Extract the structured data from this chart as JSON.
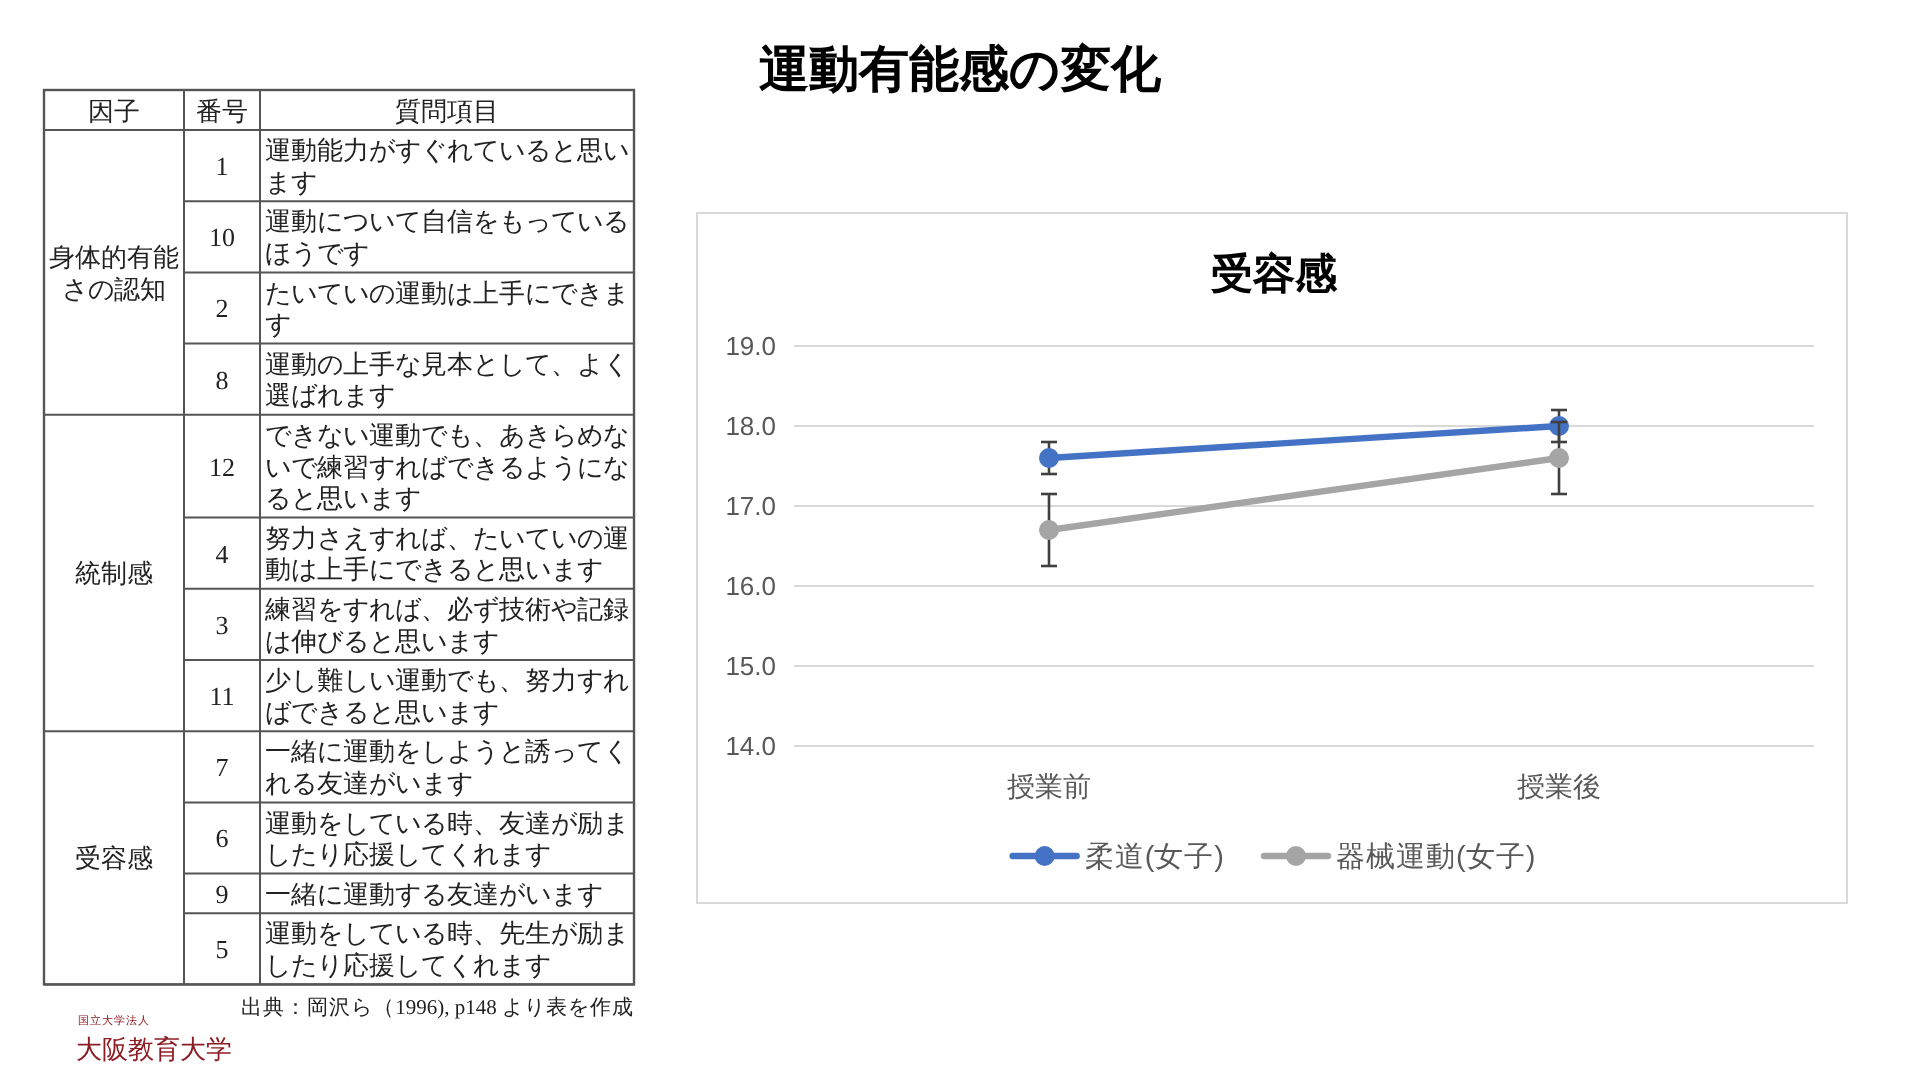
{
  "chart_data": [
    {
      "type": "other",
      "title": "運動有能感の変化",
      "categories": [
        "因子",
        "番号",
        "質問項目"
      ],
      "cell_labels": [
        [
          "身体的有能さの認知",
          "1",
          "運動能力がすぐれていると思います"
        ],
        [
          null,
          "10",
          "運動について自信をもっているほうです"
        ],
        [
          null,
          "2",
          "たいていの運動は上手にできます"
        ],
        [
          null,
          "8",
          "運動の上手な見本として、よく選ばれます"
        ],
        [
          "統制感",
          "12",
          "できない運動でも、あきらめないで練習すればできるようになると思います"
        ],
        [
          null,
          "4",
          "努力さえすれば、たいていの運動は上手にできると思います"
        ],
        [
          null,
          "3",
          "練習をすれば、必ず技術や記録は伸びると思います"
        ],
        [
          null,
          "11",
          "少し難しい運動でも、努力すればできると思います"
        ],
        [
          "受容感",
          "7",
          "一緒に運動をしようと誘ってくれる友達がいます"
        ],
        [
          null,
          "6",
          "運動をしている時、友達が励ましたり応援してくれます"
        ],
        [
          null,
          "9",
          "一緒に運動する友達がいます"
        ],
        [
          null,
          "5",
          "運動をしている時、先生が励ましたり応援してくれます"
        ]
      ],
      "annotations": [
        "出典：岡沢ら（1996), p148 より表を作成",
        "国立大学法人",
        "大阪教育大学"
      ]
    },
    {
      "type": "line",
      "title": "受容感",
      "categories": [
        "授業前",
        "授業後"
      ],
      "series": [
        {
          "name": "柔道(女子)",
          "color": "#4472c4",
          "values": [
            17.6,
            18.0
          ],
          "errors": [
            0.2,
            0.2
          ]
        },
        {
          "name": "器械運動(女子)",
          "color": "#a5a5a5",
          "values": [
            16.7,
            17.6
          ],
          "errors": [
            0.45,
            0.45
          ]
        }
      ],
      "ylim": [
        14,
        19
      ],
      "yticks": [
        {
          "value": 14,
          "label": "14.0"
        },
        {
          "value": 15,
          "label": "15.0"
        },
        {
          "value": 16,
          "label": "16.0"
        },
        {
          "value": 17,
          "label": "17.0"
        },
        {
          "value": 18,
          "label": "18.0"
        },
        {
          "value": 19,
          "label": "19.0"
        }
      ],
      "grid": "y",
      "legend": "bottom",
      "marker": "circle"
    }
  ]
}
